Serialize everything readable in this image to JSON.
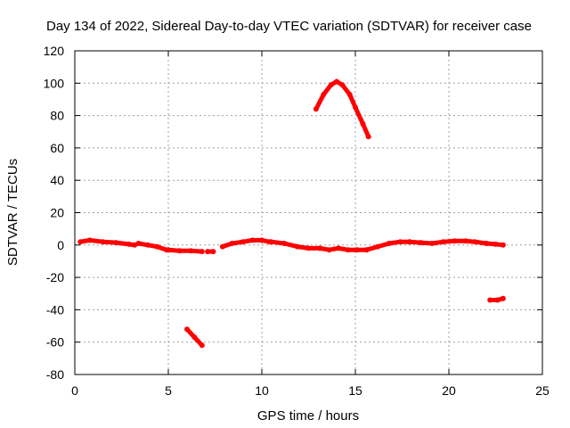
{
  "chart_data": {
    "type": "line",
    "title": "Day 134 of 2022, Sidereal Day-to-day VTEC variation (SDTVAR) for receiver case",
    "xlabel": "GPS time / hours",
    "ylabel": "SDTVAR / TECUs",
    "xlim": [
      0,
      25
    ],
    "ylim": [
      -80,
      120
    ],
    "x_ticks": [
      0,
      5,
      10,
      15,
      20,
      25
    ],
    "y_ticks": [
      -80,
      -60,
      -40,
      -20,
      0,
      20,
      40,
      60,
      80,
      100,
      120
    ],
    "grid": true,
    "series": [
      {
        "name": "SDTVAR",
        "color": "#ff0000",
        "segments": [
          {
            "x": [
              0.3,
              0.8,
              1.5,
              2.2,
              2.9,
              3.2
            ],
            "y": [
              2,
              3,
              2,
              1.5,
              0.5,
              0
            ]
          },
          {
            "x": [
              3.4,
              3.9,
              4.4,
              4.9
            ],
            "y": [
              1,
              0,
              -1,
              -3
            ]
          },
          {
            "x": [
              5.0,
              5.6,
              6.2,
              6.8
            ],
            "y": [
              -3,
              -3.5,
              -3.5,
              -4
            ]
          },
          {
            "x": [
              7.1,
              7.4
            ],
            "y": [
              -4,
              -4
            ]
          },
          {
            "x": [
              7.9,
              8.4,
              9.0,
              9.5,
              10.0,
              10.4
            ],
            "y": [
              -1,
              1,
              2,
              3,
              3,
              2
            ]
          },
          {
            "x": [
              10.5,
              11.2,
              11.9,
              12.5,
              13.1
            ],
            "y": [
              2,
              1,
              -1,
              -2,
              -2
            ]
          },
          {
            "x": [
              13.1,
              13.6,
              14.1,
              14.6,
              15.1,
              15.6
            ],
            "y": [
              -2,
              -3,
              -2,
              -3,
              -3,
              -3
            ]
          },
          {
            "x": [
              15.6,
              16.2,
              16.8,
              17.4,
              17.9
            ],
            "y": [
              -3,
              -1,
              1,
              2,
              2
            ]
          },
          {
            "x": [
              17.9,
              18.5,
              19.1,
              19.7,
              20.3,
              20.9,
              21.4,
              22.0
            ],
            "y": [
              2,
              1.5,
              1,
              2,
              2.5,
              2.5,
              2,
              1
            ]
          },
          {
            "x": [
              22.0,
              22.5,
              22.9
            ],
            "y": [
              1,
              0.5,
              0
            ]
          },
          {
            "x": [
              12.9,
              13.3,
              13.7,
              14.0,
              14.3,
              14.7,
              15.0,
              15.4,
              15.7
            ],
            "y": [
              84,
              93,
              99,
              101,
              99,
              93,
              85,
              75,
              67
            ]
          },
          {
            "x": [
              6.0,
              6.4,
              6.8
            ],
            "y": [
              -52,
              -57,
              -62
            ]
          },
          {
            "x": [
              22.2,
              22.6,
              22.9
            ],
            "y": [
              -34,
              -34,
              -33
            ]
          }
        ]
      }
    ]
  }
}
